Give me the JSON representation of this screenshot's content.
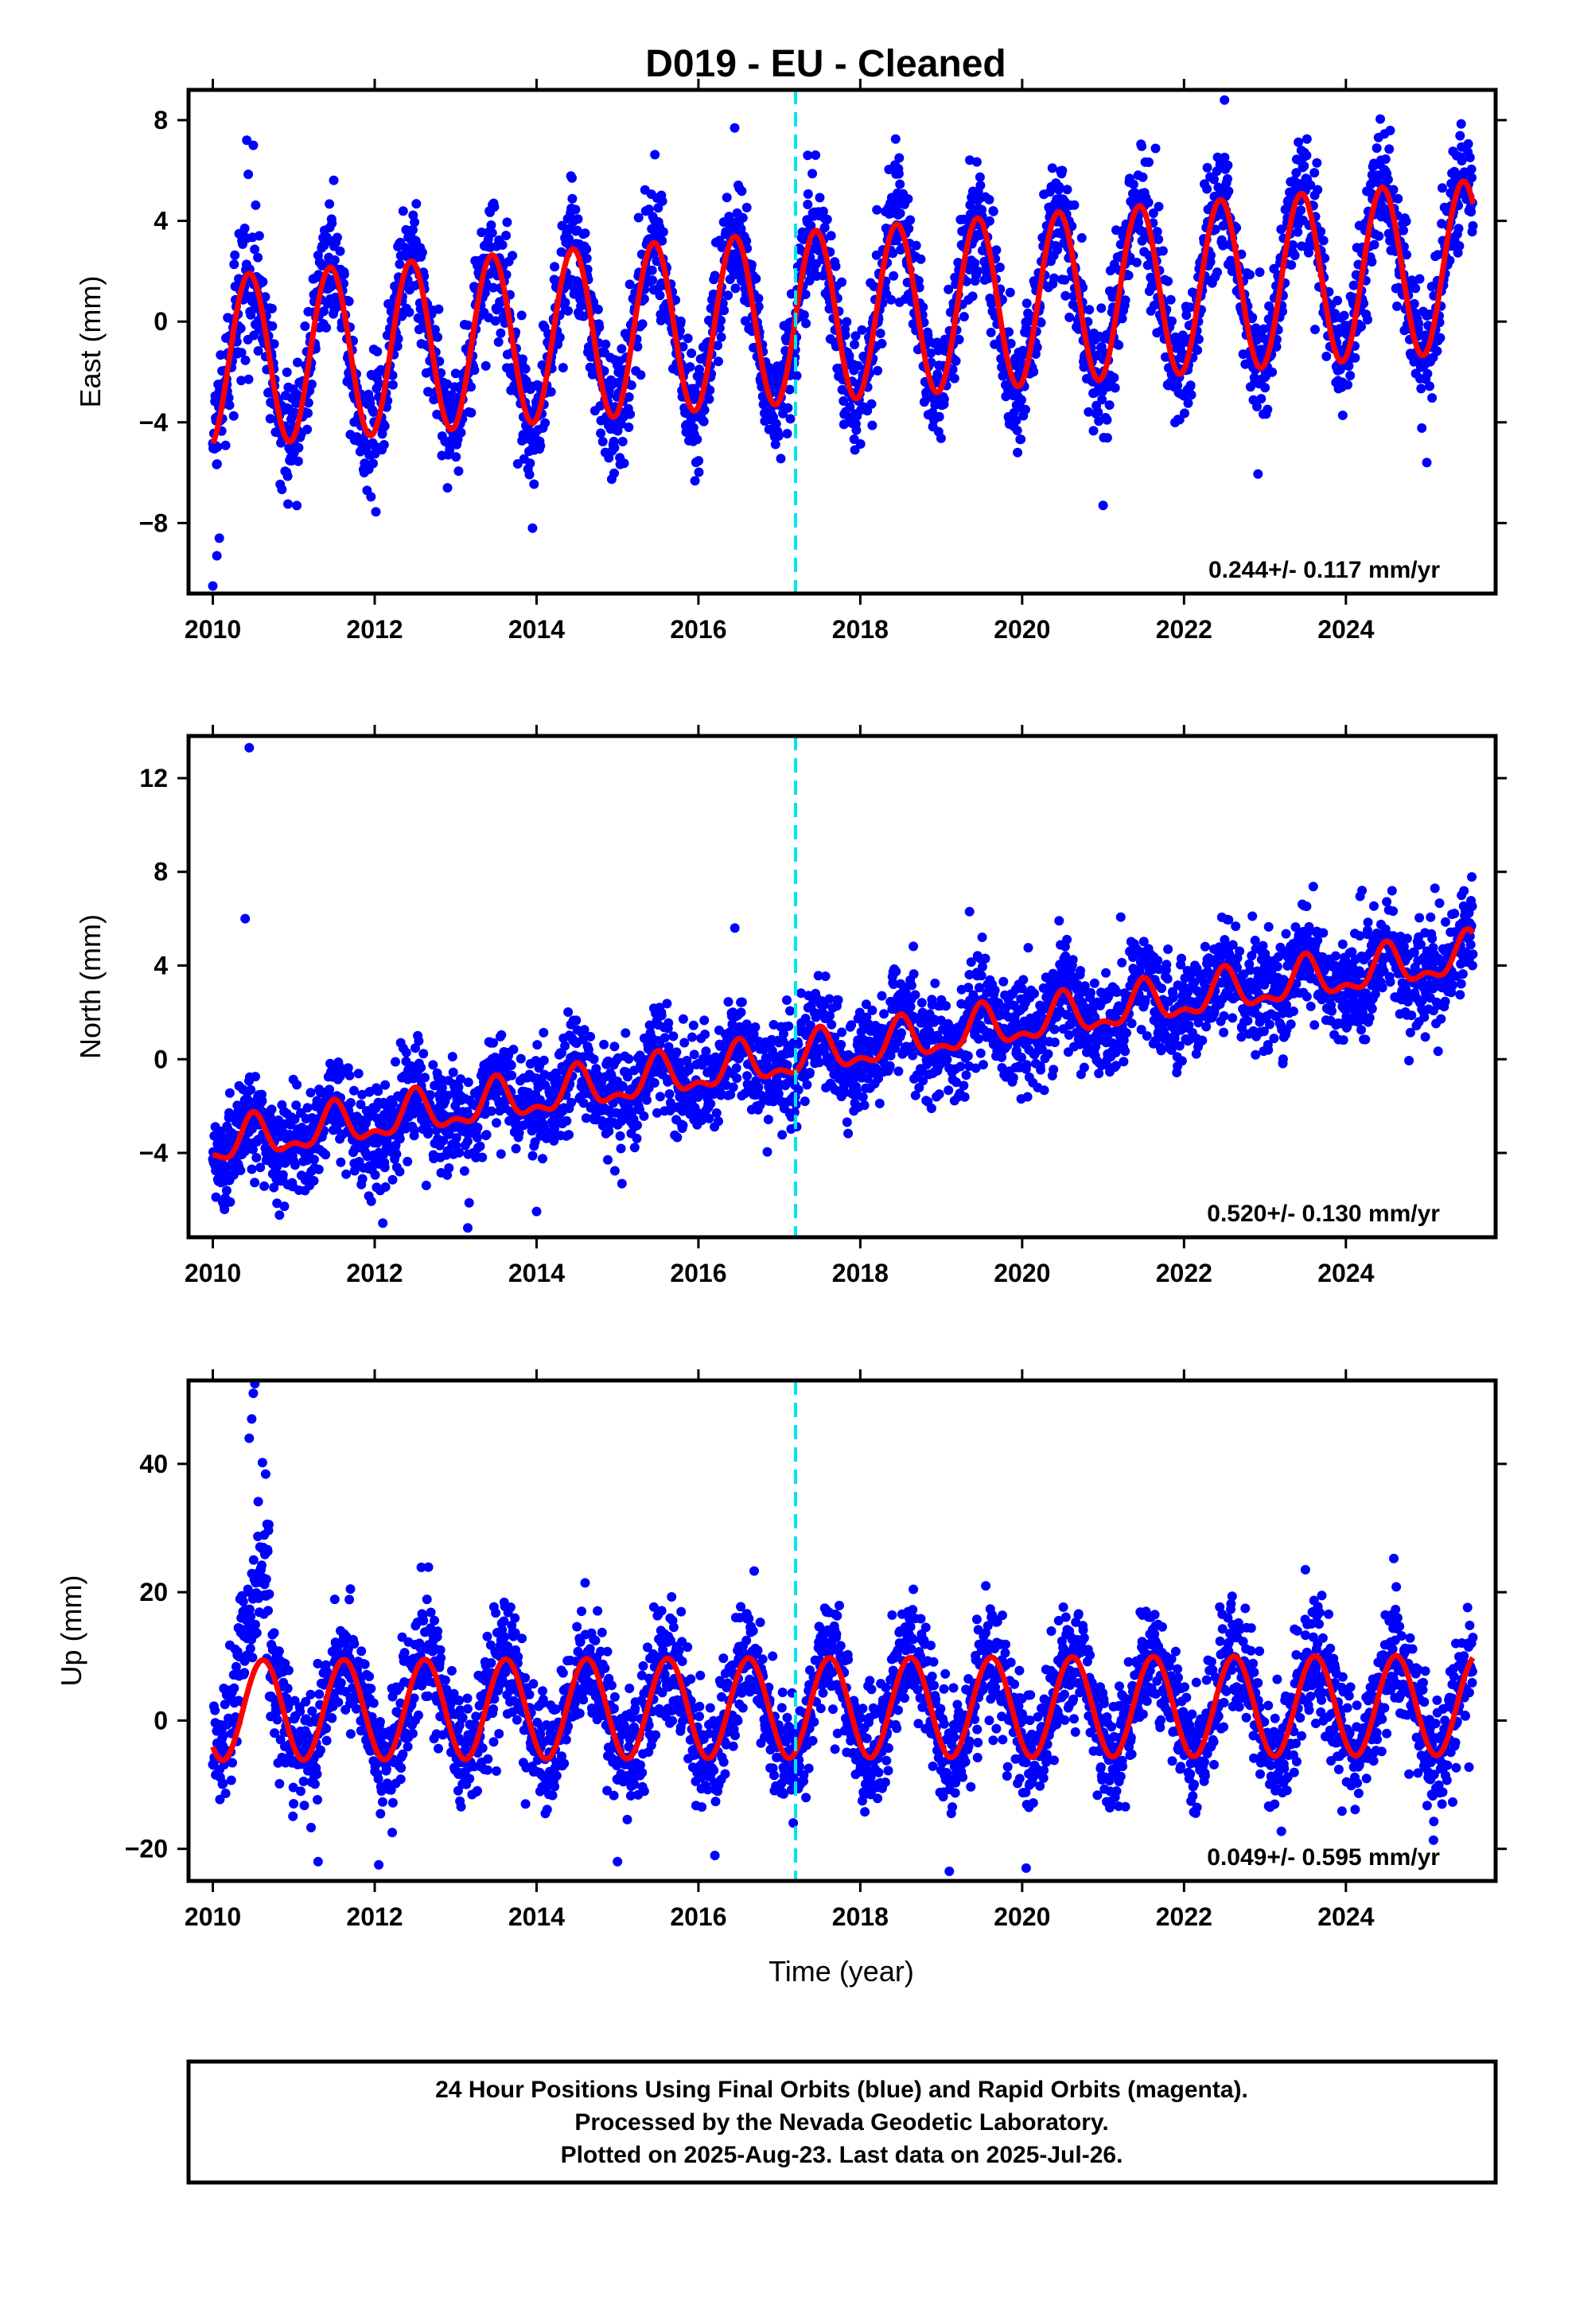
{
  "figure": {
    "title": "D019  - EU - Cleaned",
    "footer": [
      "24 Hour Positions Using Final Orbits (blue) and Rapid Orbits (magenta).",
      "Processed by the Nevada Geodetic Laboratory.",
      "Plotted on 2025-Aug-23. Last data on 2025-Jul-26."
    ],
    "colors": {
      "points": "#0000ff",
      "model": "#ff0000",
      "offset_line": "#00e5ee",
      "frame": "#000000"
    }
  },
  "chart_data": [
    {
      "type": "scatter",
      "ylabel": "East (mm)",
      "xlabel": "",
      "rate_label": "0.244+/- 0.117 mm/yr",
      "xlim": [
        2009.7,
        2025.85
      ],
      "ylim": [
        -10.8,
        9.2
      ],
      "xticks": [
        2010,
        2012,
        2014,
        2016,
        2018,
        2020,
        2022,
        2024
      ],
      "xtick_labels": [
        "2010",
        "2012",
        "2014",
        "2016",
        "2018",
        "2020",
        "2022",
        "2024"
      ],
      "yticks": [
        -8,
        -4,
        0,
        4,
        8
      ],
      "ytick_labels": [
        "−8",
        "−4",
        "0",
        "4",
        "8"
      ],
      "offset_year": 2017.2,
      "data_range": [
        2010.0,
        2025.57
      ],
      "model": {
        "intercept_2010": -1.6,
        "trend_mm_per_yr": 0.244,
        "annual_amplitude": 3.4,
        "annual_peak_phase": 0.45,
        "semiannual_amplitude": 0.0
      },
      "scatter_sigma": 1.2,
      "outliers": [
        [
          2010.0,
          -10.5
        ],
        [
          2010.05,
          -9.3
        ],
        [
          2010.08,
          -8.6
        ],
        [
          2010.42,
          7.2
        ],
        [
          2010.5,
          7.0
        ],
        [
          2013.95,
          -8.2
        ],
        [
          2021.0,
          -7.3
        ],
        [
          2022.5,
          8.8
        ],
        [
          2025.0,
          -5.6
        ],
        [
          2017.35,
          6.6
        ]
      ]
    },
    {
      "type": "scatter",
      "ylabel": "North (mm)",
      "xlabel": "",
      "rate_label": "0.520+/- 0.130 mm/yr",
      "xlim": [
        2009.7,
        2025.85
      ],
      "ylim": [
        -7.6,
        13.8
      ],
      "xticks": [
        2010,
        2012,
        2014,
        2016,
        2018,
        2020,
        2022,
        2024
      ],
      "xtick_labels": [
        "2010",
        "2012",
        "2014",
        "2016",
        "2018",
        "2020",
        "2022",
        "2024"
      ],
      "yticks": [
        -4,
        0,
        4,
        8,
        12
      ],
      "ytick_labels": [
        "−4",
        "0",
        "4",
        "8",
        "12"
      ],
      "offset_year": 2017.2,
      "data_range": [
        2010.0,
        2025.57
      ],
      "model": {
        "intercept_2010": -3.7,
        "trend_mm_per_yr": 0.52,
        "annual_amplitude": 0.8,
        "annual_peak_phase": 0.5,
        "semiannual_amplitude": 0.4
      },
      "scatter_sigma": 1.1,
      "outliers": [
        [
          2010.45,
          13.3
        ],
        [
          2010.4,
          6.0
        ],
        [
          2016.45,
          5.6
        ],
        [
          2019.35,
          6.3
        ],
        [
          2012.1,
          -7.0
        ],
        [
          2013.15,
          -7.2
        ],
        [
          2014.0,
          -6.5
        ],
        [
          2024.2,
          7.2
        ],
        [
          2025.1,
          7.3
        ],
        [
          2010.15,
          -5.2
        ]
      ]
    },
    {
      "type": "scatter",
      "ylabel": "Up (mm)",
      "xlabel": "Time (year)",
      "rate_label": "0.049+/- 0.595 mm/yr",
      "xlim": [
        2009.7,
        2025.85
      ],
      "ylim": [
        -25,
        53
      ],
      "xticks": [
        2010,
        2012,
        2014,
        2016,
        2018,
        2020,
        2022,
        2024
      ],
      "xtick_labels": [
        "2010",
        "2012",
        "2014",
        "2016",
        "2018",
        "2020",
        "2022",
        "2024"
      ],
      "yticks": [
        -20,
        0,
        20,
        40
      ],
      "ytick_labels": [
        "−20",
        "0",
        "20",
        "40"
      ],
      "offset_year": 2017.2,
      "data_range": [
        2010.0,
        2025.57
      ],
      "model": {
        "intercept_2010": 1.6,
        "trend_mm_per_yr": 0.049,
        "annual_amplitude": 7.8,
        "annual_peak_phase": 0.62,
        "semiannual_amplitude": 0.0
      },
      "scatter_sigma": 4.5,
      "outliers": [
        [
          2010.5,
          51.0
        ],
        [
          2010.52,
          52.5
        ],
        [
          2010.48,
          47.0
        ],
        [
          2010.45,
          44.0
        ],
        [
          2011.3,
          -22.0
        ],
        [
          2012.05,
          -22.5
        ],
        [
          2015.0,
          -22.0
        ],
        [
          2019.1,
          -23.5
        ],
        [
          2020.05,
          -23.0
        ],
        [
          2023.5,
          23.5
        ],
        [
          2019.55,
          21.0
        ],
        [
          2011.7,
          20.5
        ]
      ]
    }
  ]
}
